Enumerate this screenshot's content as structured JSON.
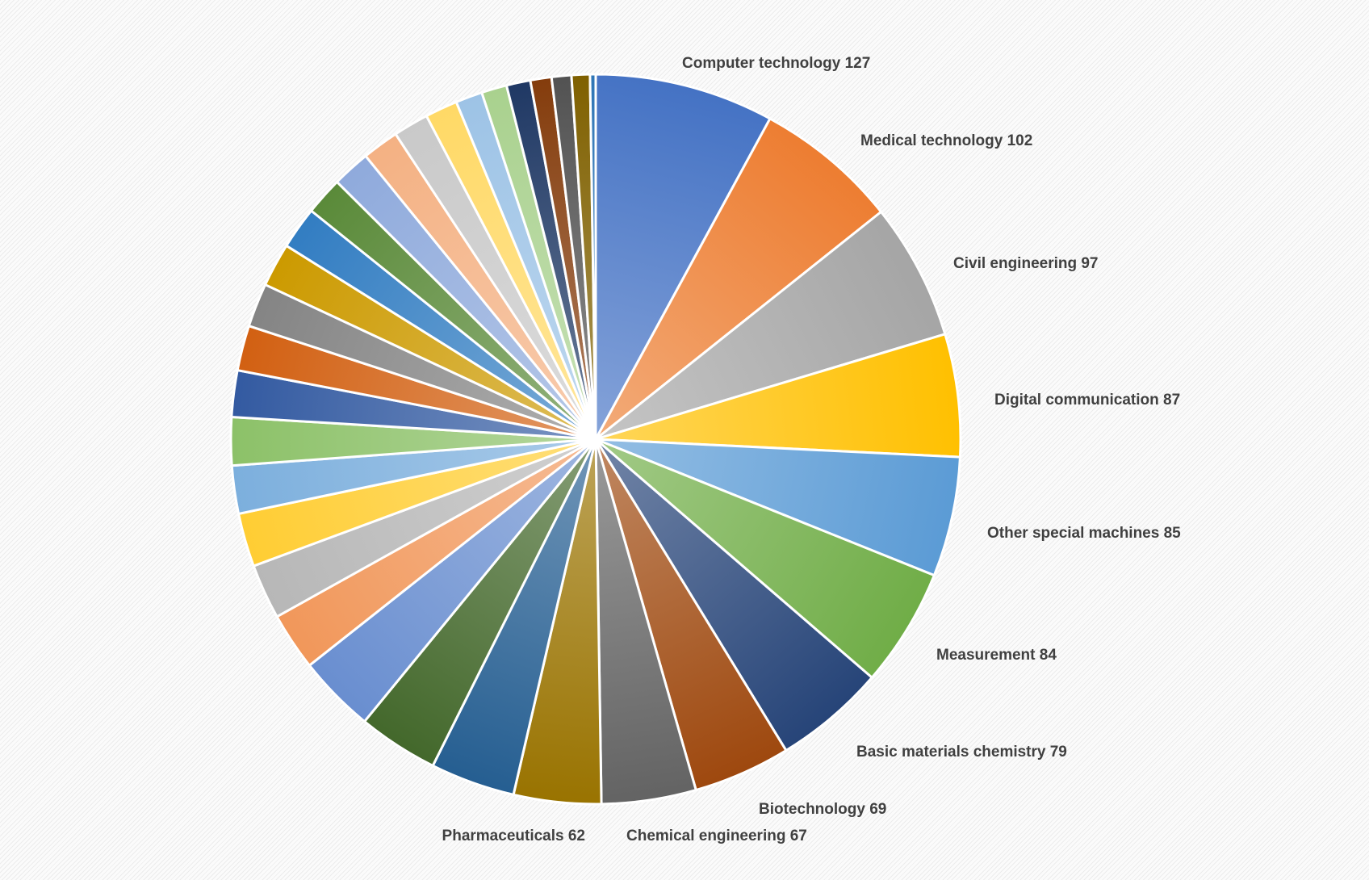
{
  "chart_data": {
    "type": "pie",
    "title": "",
    "start_angle_deg": 0,
    "direction": "clockwise",
    "gradient_fill": true,
    "slices": [
      {
        "label": "Computer technology",
        "value": 127,
        "color": "#4472C4",
        "text": "Computer technology 127"
      },
      {
        "label": "Medical technology",
        "value": 102,
        "color": "#ED7D31",
        "text": "Medical technology 102"
      },
      {
        "label": "Civil engineering",
        "value": 97,
        "color": "#A5A5A5",
        "text": "Civil engineering 97"
      },
      {
        "label": "Digital communication",
        "value": 87,
        "color": "#FFC000",
        "text": "Digital communication 87"
      },
      {
        "label": "Other special machines",
        "value": 85,
        "color": "#5B9BD5",
        "text": "Other special machines 85"
      },
      {
        "label": "Measurement",
        "value": 84,
        "color": "#70AD47",
        "text": "Measurement 84"
      },
      {
        "label": "Basic materials chemistry",
        "value": 79,
        "color": "#264478",
        "text": "Basic materials chemistry 79"
      },
      {
        "label": "Biotechnology",
        "value": 69,
        "color": "#9E480E",
        "text": "Biotechnology 69"
      },
      {
        "label": "Chemical engineering",
        "value": 67,
        "color": "#636363",
        "text": "Chemical engineering 67"
      },
      {
        "label": "Pharmaceuticals",
        "value": 62,
        "color": "#997300",
        "text": "Pharmaceuticals 62"
      },
      {
        "label": "",
        "value": 60,
        "color": "#255E91",
        "text": ""
      },
      {
        "label": "",
        "value": 57,
        "color": "#43682B",
        "text": ""
      },
      {
        "label": "",
        "value": 55,
        "color": "#698ED0",
        "text": ""
      },
      {
        "label": "",
        "value": 41,
        "color": "#F1975A",
        "text": ""
      },
      {
        "label": "",
        "value": 39,
        "color": "#B7B7B7",
        "text": ""
      },
      {
        "label": "",
        "value": 38,
        "color": "#FFCD33",
        "text": ""
      },
      {
        "label": "",
        "value": 34,
        "color": "#7CAFDD",
        "text": ""
      },
      {
        "label": "",
        "value": 34,
        "color": "#8CC168",
        "text": ""
      },
      {
        "label": "",
        "value": 33,
        "color": "#335AA1",
        "text": ""
      },
      {
        "label": "",
        "value": 32,
        "color": "#D26012",
        "text": ""
      },
      {
        "label": "",
        "value": 31,
        "color": "#848484",
        "text": ""
      },
      {
        "label": "",
        "value": 31,
        "color": "#CC9A00",
        "text": ""
      },
      {
        "label": "",
        "value": 30,
        "color": "#327DC2",
        "text": ""
      },
      {
        "label": "",
        "value": 27,
        "color": "#5A8A39",
        "text": ""
      },
      {
        "label": "",
        "value": 27,
        "color": "#8FAADC",
        "text": ""
      },
      {
        "label": "",
        "value": 26,
        "color": "#F4B183",
        "text": ""
      },
      {
        "label": "",
        "value": 25,
        "color": "#C9C9C9",
        "text": ""
      },
      {
        "label": "",
        "value": 23,
        "color": "#FFD966",
        "text": ""
      },
      {
        "label": "",
        "value": 19,
        "color": "#9DC3E6",
        "text": ""
      },
      {
        "label": "",
        "value": 18,
        "color": "#A9D18E",
        "text": ""
      },
      {
        "label": "",
        "value": 17,
        "color": "#1F3864",
        "text": ""
      },
      {
        "label": "",
        "value": 15,
        "color": "#843C0C",
        "text": ""
      },
      {
        "label": "",
        "value": 14,
        "color": "#525252",
        "text": ""
      },
      {
        "label": "",
        "value": 13,
        "color": "#7F6000",
        "text": ""
      },
      {
        "label": "",
        "value": 4,
        "color": "#2E75B6",
        "text": ""
      }
    ]
  }
}
